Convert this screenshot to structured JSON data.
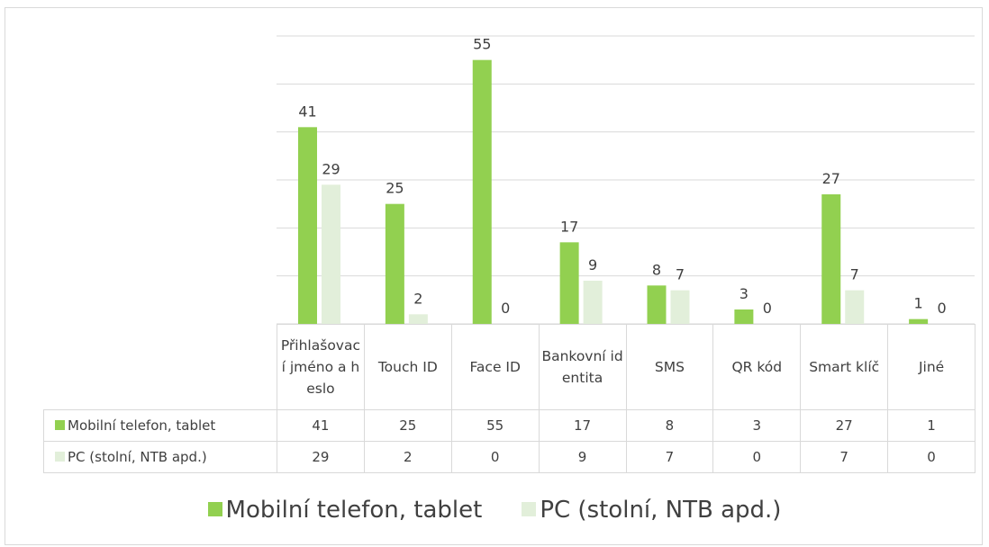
{
  "chart_data": {
    "type": "bar",
    "categories": [
      "Přihlašovací jméno a heslo",
      "Touch ID",
      "Face ID",
      "Bankovní identita",
      "SMS",
      "QR kód",
      "Smart klíč",
      "Jiné"
    ],
    "series": [
      {
        "name": "Mobilní telefon, tablet",
        "color": "#92d050",
        "values": [
          41,
          25,
          55,
          17,
          8,
          3,
          27,
          1
        ]
      },
      {
        "name": "PC (stolní, NTB apd.)",
        "color": "#e2efda",
        "values": [
          29,
          2,
          0,
          9,
          7,
          0,
          7,
          0
        ]
      }
    ],
    "ylim": [
      0,
      60
    ],
    "yticks": [
      0,
      10,
      20,
      30,
      40,
      50,
      60
    ],
    "grid": true,
    "legend": "bottom"
  }
}
